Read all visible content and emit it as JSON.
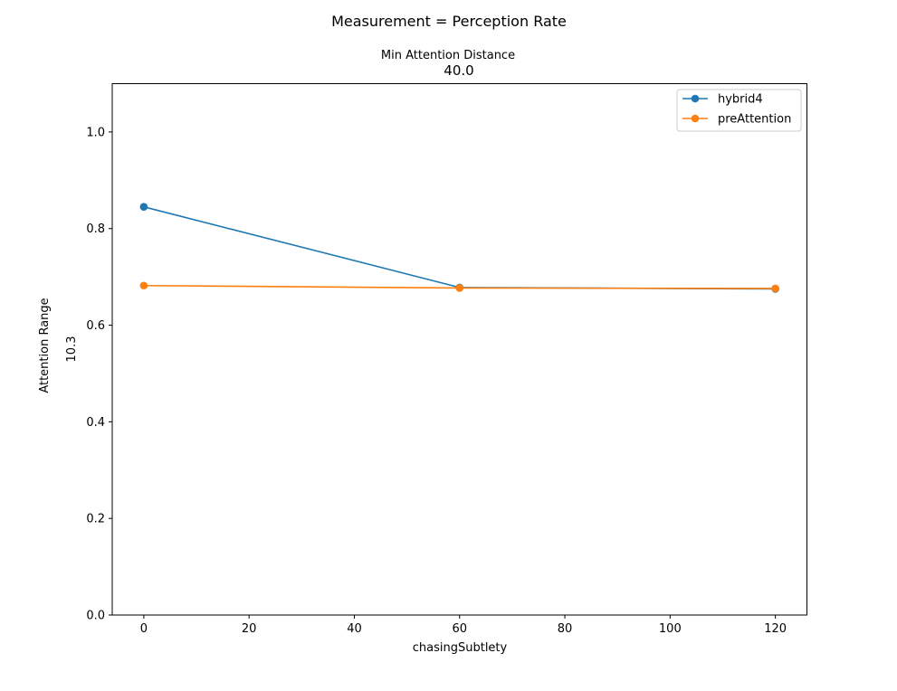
{
  "figure": {
    "suptitle": "Measurement = Perception Rate",
    "top_label": "Min Attention Distance",
    "top_value": "40.0",
    "left_label": "Attention Range",
    "left_value": "10.3"
  },
  "colors": {
    "hybrid4": "#1f77b4",
    "preAttention": "#ff7f0e"
  },
  "chart_data": {
    "type": "line",
    "title": "40.0",
    "xlabel": "chasingSubtlety",
    "ylabel": "10.3",
    "x": [
      0,
      60,
      120
    ],
    "xlim": [
      -6,
      126
    ],
    "ylim": [
      0,
      1.1
    ],
    "xticks": [
      0,
      20,
      40,
      60,
      80,
      100,
      120
    ],
    "yticks": [
      0.0,
      0.2,
      0.4,
      0.6,
      0.8,
      1.0
    ],
    "xtick_labels": [
      "0",
      "20",
      "40",
      "60",
      "80",
      "100",
      "120"
    ],
    "ytick_labels": [
      "0.0",
      "0.2",
      "0.4",
      "0.6",
      "0.8",
      "1.0"
    ],
    "grid": false,
    "legend_position": "top-right",
    "series": [
      {
        "name": "hybrid4",
        "values": [
          0.845,
          0.678,
          0.675
        ]
      },
      {
        "name": "preAttention",
        "values": [
          0.682,
          0.677,
          0.676
        ]
      }
    ]
  }
}
